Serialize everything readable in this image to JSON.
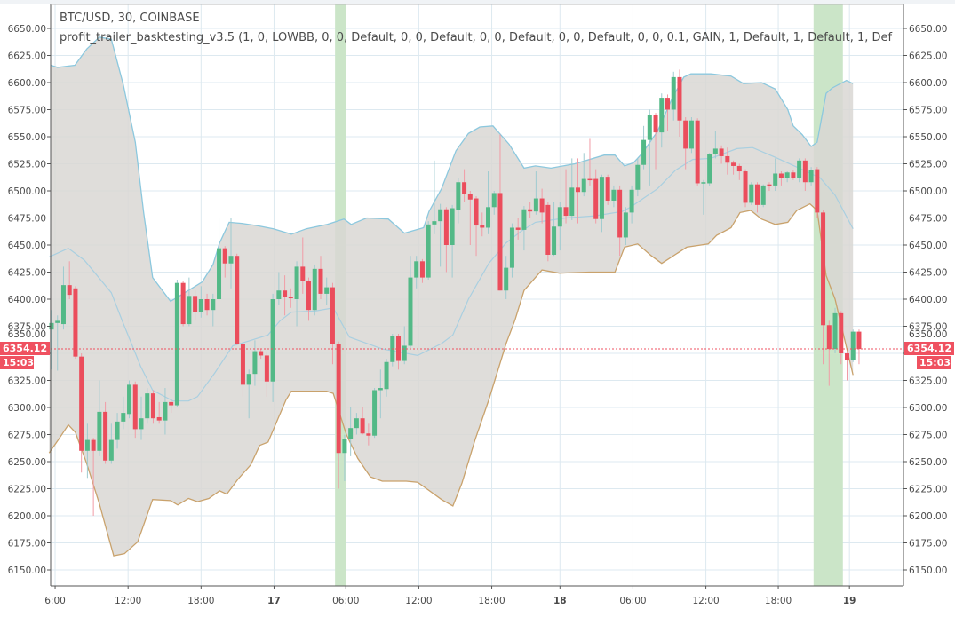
{
  "chart_data": {
    "type": "candlestick",
    "symbol_title": "BTC/USD, 30, COINBASE",
    "indicator_title": "profit_trailer_basktesting_v3.5 (1, 0, LOWBB, 0, 0, Default, 0, 0, Default, 0, 0, Default, 0, 0, Default, 0, 0, 0.1, GAIN, 1, Default, 1, Default, 1, Def",
    "ylim": [
      6135,
      6672
    ],
    "y_ticks": [
      "6150.00",
      "6175.00",
      "6200.00",
      "6225.00",
      "6250.00",
      "6275.00",
      "6300.00",
      "6325.00",
      "6350.00",
      "6375.00",
      "6400.00",
      "6425.00",
      "6450.00",
      "6475.00",
      "6500.00",
      "6525.00",
      "6550.00",
      "6575.00",
      "6600.00",
      "6625.00",
      "6650.00"
    ],
    "x_ticks": [
      {
        "label": "6:00",
        "at": 0.6,
        "bold": false
      },
      {
        "label": "12:00",
        "at": 12.8,
        "bold": false
      },
      {
        "label": "18:00",
        "at": 25,
        "bold": false
      },
      {
        "label": "17",
        "at": 37.2,
        "bold": true
      },
      {
        "label": "06:00",
        "at": 49.2,
        "bold": false
      },
      {
        "label": "12:00",
        "at": 61.4,
        "bold": false
      },
      {
        "label": "18:00",
        "at": 73.6,
        "bold": false
      },
      {
        "label": "18",
        "at": 85,
        "bold": true
      },
      {
        "label": "06:00",
        "at": 97.2,
        "bold": false
      },
      {
        "label": "12:00",
        "at": 109.4,
        "bold": false
      },
      {
        "label": "18:00",
        "at": 121.5,
        "bold": false
      },
      {
        "label": "19",
        "at": 133.4,
        "bold": true
      }
    ],
    "candles_ohlc": [
      [
        6372,
        6390,
        6335,
        6378
      ],
      [
        6378,
        6385,
        6334,
        6380
      ],
      [
        6377,
        6430,
        6372,
        6413
      ],
      [
        6413,
        6435,
        6400,
        6404
      ],
      [
        6410,
        6412,
        6345,
        6347
      ],
      [
        6347,
        6350,
        6240,
        6260
      ],
      [
        6260,
        6285,
        6235,
        6270
      ],
      [
        6270,
        6272,
        6200,
        6260
      ],
      [
        6260,
        6325,
        6255,
        6296
      ],
      [
        6296,
        6305,
        6248,
        6251
      ],
      [
        6251,
        6285,
        6248,
        6270
      ],
      [
        6270,
        6295,
        6262,
        6287
      ],
      [
        6287,
        6310,
        6280,
        6295
      ],
      [
        6294,
        6325,
        6290,
        6321
      ],
      [
        6321,
        6324,
        6272,
        6280
      ],
      [
        6280,
        6310,
        6270,
        6290
      ],
      [
        6290,
        6318,
        6285,
        6313
      ],
      [
        6313,
        6316,
        6285,
        6290
      ],
      [
        6291,
        6305,
        6285,
        6288
      ],
      [
        6288,
        6318,
        6275,
        6305
      ],
      [
        6305,
        6308,
        6295,
        6302
      ],
      [
        6302,
        6418,
        6300,
        6415
      ],
      [
        6415,
        6417,
        6375,
        6377
      ],
      [
        6377,
        6420,
        6375,
        6403
      ],
      [
        6403,
        6408,
        6380,
        6388
      ],
      [
        6388,
        6412,
        6383,
        6400
      ],
      [
        6400,
        6405,
        6385,
        6390
      ],
      [
        6390,
        6405,
        6375,
        6400
      ],
      [
        6400,
        6475,
        6398,
        6447
      ],
      [
        6447,
        6449,
        6420,
        6433
      ],
      [
        6433,
        6475,
        6410,
        6440
      ],
      [
        6440,
        6442,
        6358,
        6359
      ],
      [
        6359,
        6362,
        6310,
        6321
      ],
      [
        6321,
        6335,
        6290,
        6331
      ],
      [
        6331,
        6362,
        6320,
        6352
      ],
      [
        6352,
        6354,
        6345,
        6348
      ],
      [
        6348,
        6352,
        6310,
        6324
      ],
      [
        6324,
        6405,
        6305,
        6400
      ],
      [
        6400,
        6425,
        6395,
        6408
      ],
      [
        6408,
        6422,
        6385,
        6402
      ],
      [
        6402,
        6410,
        6392,
        6401
      ],
      [
        6400,
        6435,
        6375,
        6430
      ],
      [
        6430,
        6457,
        6405,
        6417
      ],
      [
        6417,
        6420,
        6380,
        6390
      ],
      [
        6390,
        6432,
        6385,
        6428
      ],
      [
        6428,
        6440,
        6400,
        6405
      ],
      [
        6405,
        6420,
        6395,
        6411
      ],
      [
        6411,
        6415,
        6340,
        6359
      ],
      [
        6359,
        6361,
        6225,
        6258
      ],
      [
        6258,
        6275,
        6232,
        6271
      ],
      [
        6271,
        6300,
        6255,
        6281
      ],
      [
        6281,
        6295,
        6275,
        6290
      ],
      [
        6290,
        6300,
        6275,
        6276
      ],
      [
        6276,
        6285,
        6265,
        6274
      ],
      [
        6274,
        6318,
        6272,
        6316
      ],
      [
        6316,
        6335,
        6290,
        6318
      ],
      [
        6317,
        6345,
        6310,
        6342
      ],
      [
        6342,
        6368,
        6338,
        6366
      ],
      [
        6366,
        6368,
        6335,
        6343
      ],
      [
        6343,
        6375,
        6340,
        6357
      ],
      [
        6357,
        6440,
        6355,
        6420
      ],
      [
        6420,
        6440,
        6410,
        6435
      ],
      [
        6435,
        6437,
        6415,
        6420
      ],
      [
        6420,
        6472,
        6418,
        6469
      ],
      [
        6469,
        6528,
        6460,
        6472
      ],
      [
        6472,
        6488,
        6430,
        6483
      ],
      [
        6483,
        6485,
        6425,
        6450
      ],
      [
        6450,
        6487,
        6420,
        6484
      ],
      [
        6482,
        6512,
        6470,
        6508
      ],
      [
        6508,
        6520,
        6490,
        6497
      ],
      [
        6497,
        6500,
        6450,
        6492
      ],
      [
        6493,
        6495,
        6440,
        6468
      ],
      [
        6468,
        6480,
        6458,
        6466
      ],
      [
        6466,
        6518,
        6460,
        6485
      ],
      [
        6485,
        6500,
        6478,
        6498
      ],
      [
        6498,
        6552,
        6408,
        6408
      ],
      [
        6408,
        6440,
        6400,
        6429
      ],
      [
        6429,
        6470,
        6420,
        6466
      ],
      [
        6466,
        6475,
        6455,
        6464
      ],
      [
        6464,
        6486,
        6445,
        6483
      ],
      [
        6483,
        6490,
        6475,
        6481
      ],
      [
        6481,
        6518,
        6478,
        6493
      ],
      [
        6493,
        6502,
        6470,
        6480
      ],
      [
        6487,
        6490,
        6435,
        6441
      ],
      [
        6441,
        6490,
        6440,
        6467
      ],
      [
        6467,
        6490,
        6445,
        6485
      ],
      [
        6485,
        6520,
        6470,
        6477
      ],
      [
        6477,
        6530,
        6473,
        6503
      ],
      [
        6503,
        6530,
        6470,
        6499
      ],
      [
        6499,
        6535,
        6495,
        6511
      ],
      [
        6511,
        6548,
        6505,
        6510
      ],
      [
        6511,
        6520,
        6470,
        6474
      ],
      [
        6474,
        6515,
        6462,
        6513
      ],
      [
        6513,
        6515,
        6487,
        6491
      ],
      [
        6491,
        6505,
        6485,
        6501
      ],
      [
        6501,
        6505,
        6440,
        6457
      ],
      [
        6457,
        6485,
        6450,
        6480
      ],
      [
        6480,
        6505,
        6470,
        6501
      ],
      [
        6501,
        6530,
        6495,
        6524
      ],
      [
        6524,
        6560,
        6520,
        6547
      ],
      [
        6547,
        6575,
        6505,
        6570
      ],
      [
        6570,
        6572,
        6520,
        6554
      ],
      [
        6554,
        6590,
        6540,
        6586
      ],
      [
        6586,
        6589,
        6555,
        6575
      ],
      [
        6575,
        6610,
        6565,
        6605
      ],
      [
        6605,
        6612,
        6550,
        6565
      ],
      [
        6565,
        6568,
        6520,
        6539
      ],
      [
        6539,
        6568,
        6535,
        6565
      ],
      [
        6565,
        6567,
        6505,
        6507
      ],
      [
        6507,
        6510,
        6478,
        6508
      ],
      [
        6507,
        6535,
        6505,
        6534
      ],
      [
        6534,
        6555,
        6530,
        6539
      ],
      [
        6539,
        6542,
        6525,
        6532
      ],
      [
        6532,
        6540,
        6515,
        6526
      ],
      [
        6526,
        6528,
        6515,
        6523
      ],
      [
        6523,
        6525,
        6510,
        6518
      ],
      [
        6518,
        6520,
        6485,
        6489
      ],
      [
        6489,
        6508,
        6487,
        6506
      ],
      [
        6506,
        6508,
        6480,
        6487
      ],
      [
        6487,
        6506,
        6485,
        6505
      ],
      [
        6506,
        6508,
        6500,
        6505
      ],
      [
        6505,
        6530,
        6500,
        6516
      ],
      [
        6516,
        6518,
        6505,
        6512
      ],
      [
        6512,
        6518,
        6508,
        6517
      ],
      [
        6517,
        6519,
        6510,
        6512
      ],
      [
        6512,
        6530,
        6508,
        6528
      ],
      [
        6528,
        6530,
        6500,
        6508
      ],
      [
        6508,
        6522,
        6505,
        6519
      ],
      [
        6520,
        6522,
        6475,
        6480
      ],
      [
        6480,
        6482,
        6340,
        6376
      ],
      [
        6376,
        6380,
        6320,
        6354
      ],
      [
        6354,
        6392,
        6350,
        6387
      ],
      [
        6387,
        6389,
        6340,
        6350
      ],
      [
        6350,
        6352,
        6325,
        6344
      ],
      [
        6344,
        6372,
        6342,
        6370
      ],
      [
        6370,
        6372,
        6340,
        6354
      ]
    ],
    "bollinger_upper": [
      [
        -0.1,
        6616
      ],
      [
        1,
        6614
      ],
      [
        3.9,
        6616
      ],
      [
        5.9,
        6631
      ],
      [
        8,
        6642
      ],
      [
        10,
        6640
      ],
      [
        12,
        6598
      ],
      [
        14,
        6545
      ],
      [
        15.4,
        6480
      ],
      [
        16.9,
        6420
      ],
      [
        19.9,
        6398
      ],
      [
        21.4,
        6403
      ],
      [
        25.2,
        6416
      ],
      [
        27,
        6432
      ],
      [
        28.1,
        6452
      ],
      [
        29.7,
        6471
      ],
      [
        31.8,
        6470
      ],
      [
        34.2,
        6468
      ],
      [
        37.1,
        6465
      ],
      [
        40.1,
        6460
      ],
      [
        42.6,
        6465
      ],
      [
        46.1,
        6469
      ],
      [
        48.9,
        6474
      ],
      [
        50.1,
        6469
      ],
      [
        52.7,
        6475
      ],
      [
        56.3,
        6474
      ],
      [
        59,
        6461
      ],
      [
        62.2,
        6466
      ],
      [
        63.1,
        6481
      ],
      [
        65.2,
        6502
      ],
      [
        67.6,
        6537
      ],
      [
        69.7,
        6553
      ],
      [
        71.6,
        6559
      ],
      [
        73.8,
        6560
      ],
      [
        76.5,
        6543
      ],
      [
        79,
        6521
      ],
      [
        80.9,
        6523
      ],
      [
        83.5,
        6521
      ],
      [
        87.5,
        6525
      ],
      [
        92.4,
        6533
      ],
      [
        94.2,
        6533
      ],
      [
        95.8,
        6523
      ],
      [
        97.3,
        6526
      ],
      [
        98.8,
        6535
      ],
      [
        101.3,
        6555
      ],
      [
        103.8,
        6586
      ],
      [
        105.7,
        6605
      ],
      [
        106.9,
        6608
      ],
      [
        110.2,
        6608
      ],
      [
        113.6,
        6606
      ],
      [
        115.7,
        6599
      ],
      [
        118.7,
        6600
      ],
      [
        121,
        6594
      ],
      [
        123.1,
        6575
      ],
      [
        124,
        6560
      ],
      [
        125.5,
        6552
      ],
      [
        127,
        6541
      ],
      [
        128,
        6545
      ],
      [
        129.5,
        6590
      ],
      [
        130.5,
        6595
      ],
      [
        132.9,
        6602
      ],
      [
        134,
        6599
      ]
    ],
    "bollinger_middle": [
      [
        -0.4,
        6439
      ],
      [
        2.8,
        6447
      ],
      [
        5.5,
        6436
      ],
      [
        10,
        6406
      ],
      [
        11.9,
        6379
      ],
      [
        14.9,
        6338
      ],
      [
        16.9,
        6316
      ],
      [
        20.3,
        6306
      ],
      [
        22.9,
        6306
      ],
      [
        24.4,
        6310
      ],
      [
        27.3,
        6332
      ],
      [
        30.3,
        6357
      ],
      [
        33.3,
        6362
      ],
      [
        36.2,
        6367
      ],
      [
        38.2,
        6380
      ],
      [
        40.1,
        6388
      ],
      [
        44.1,
        6389
      ],
      [
        47.1,
        6392
      ],
      [
        49.8,
        6365
      ],
      [
        55.3,
        6354
      ],
      [
        61.2,
        6348
      ],
      [
        65.2,
        6359
      ],
      [
        67.1,
        6367
      ],
      [
        69.7,
        6400
      ],
      [
        73.1,
        6433
      ],
      [
        76,
        6452
      ],
      [
        78.6,
        6463
      ],
      [
        80.9,
        6471
      ],
      [
        86,
        6475
      ],
      [
        90.9,
        6477
      ],
      [
        95.4,
        6481
      ],
      [
        96.8,
        6485
      ],
      [
        101.3,
        6502
      ],
      [
        104.3,
        6519
      ],
      [
        107.2,
        6529
      ],
      [
        110.2,
        6530
      ],
      [
        114.6,
        6539
      ],
      [
        117.2,
        6540
      ],
      [
        121,
        6531
      ],
      [
        124.6,
        6522
      ],
      [
        128.5,
        6512
      ],
      [
        131,
        6496
      ],
      [
        134,
        6465
      ]
    ],
    "bollinger_lower": [
      [
        -0.4,
        6258
      ],
      [
        1,
        6269
      ],
      [
        2.8,
        6284
      ],
      [
        4,
        6277
      ],
      [
        5.9,
        6248
      ],
      [
        8,
        6211
      ],
      [
        8.9,
        6193
      ],
      [
        10.4,
        6163
      ],
      [
        12.2,
        6165
      ],
      [
        14.4,
        6176
      ],
      [
        16.9,
        6215
      ],
      [
        19.9,
        6214
      ],
      [
        21.1,
        6210
      ],
      [
        22.9,
        6216
      ],
      [
        24.4,
        6213
      ],
      [
        26.3,
        6216
      ],
      [
        28.1,
        6223
      ],
      [
        29.3,
        6220
      ],
      [
        31.2,
        6234
      ],
      [
        33.3,
        6247
      ],
      [
        34.8,
        6265
      ],
      [
        36.2,
        6268
      ],
      [
        39.2,
        6307
      ],
      [
        40.1,
        6315
      ],
      [
        46,
        6315
      ],
      [
        47.1,
        6313
      ],
      [
        49.3,
        6275
      ],
      [
        51.2,
        6253
      ],
      [
        53.3,
        6236
      ],
      [
        55.3,
        6232
      ],
      [
        59.3,
        6232
      ],
      [
        61.2,
        6231
      ],
      [
        62.7,
        6225
      ],
      [
        65.2,
        6215
      ],
      [
        67.1,
        6209
      ],
      [
        68.6,
        6230
      ],
      [
        70.8,
        6270
      ],
      [
        73.1,
        6307
      ],
      [
        76,
        6359
      ],
      [
        77.5,
        6381
      ],
      [
        79,
        6408
      ],
      [
        80.9,
        6420
      ],
      [
        82,
        6427
      ],
      [
        84.9,
        6424
      ],
      [
        89.9,
        6425
      ],
      [
        94.2,
        6425
      ],
      [
        95.8,
        6448
      ],
      [
        98,
        6451
      ],
      [
        100.3,
        6440
      ],
      [
        102,
        6433
      ],
      [
        103.1,
        6437
      ],
      [
        106.2,
        6448
      ],
      [
        109.8,
        6451
      ],
      [
        111.2,
        6459
      ],
      [
        113.6,
        6466
      ],
      [
        115.1,
        6480
      ],
      [
        116.9,
        6482
      ],
      [
        118.7,
        6474
      ],
      [
        121,
        6469
      ],
      [
        123.1,
        6471
      ],
      [
        124.6,
        6482
      ],
      [
        126.8,
        6488
      ],
      [
        128,
        6482
      ],
      [
        129.5,
        6422
      ],
      [
        131,
        6400
      ],
      [
        134,
        6330
      ]
    ],
    "signal_ranges": [
      {
        "from": 47.4,
        "to": 49.3
      },
      {
        "from": 127.4,
        "to": 132.3
      }
    ],
    "last_price": 6354.12,
    "last_price_label": "6354.12",
    "countdown_label": "15:03",
    "grid": true
  },
  "colors": {
    "up": "#53b987",
    "down": "#eb4d5c",
    "up_wick": "#9fcbd0",
    "down_wick": "#f19ca6",
    "band_fill": "#d9d7d3",
    "upper_line": "#8cc8de",
    "middle_line": "#a9cfe0",
    "lower_line": "#c9a26c",
    "signal": "#cbe5c8",
    "grid": "#dde9f0",
    "price_line": "#ef5160"
  }
}
